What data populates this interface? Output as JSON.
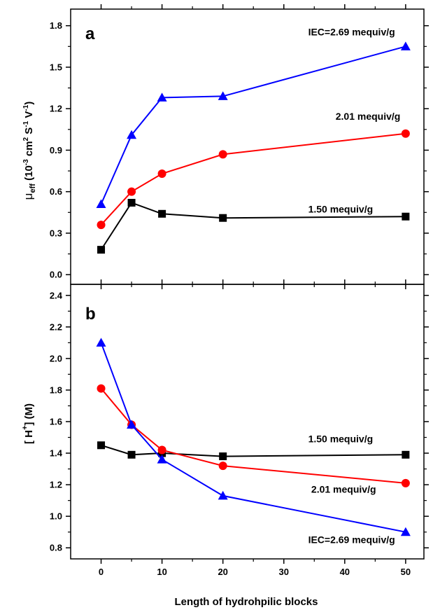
{
  "colors": {
    "black": "#000000",
    "red": "#ff0000",
    "blue": "#0000ff"
  },
  "axes": {
    "xlabel": "Length of hydrohpilic blocks",
    "xlim": [
      -5,
      53
    ],
    "xticks": [
      0,
      10,
      20,
      30,
      40,
      50
    ]
  },
  "chart_data": [
    {
      "type": "line",
      "panel": "a",
      "ylabel_parts": {
        "mu": "μ",
        "mu_sub": "eff",
        "open": " (10",
        "exp1": "-3",
        "cm": " cm",
        "exp2": "2",
        "s": " S",
        "exp3": "-1",
        "v": " V",
        "exp4": "-1",
        "close": ")"
      },
      "ylim": [
        -0.07,
        1.92
      ],
      "yticks": [
        "0.0",
        "0.3",
        "0.6",
        "0.9",
        "1.2",
        "1.5",
        "1.8"
      ],
      "x": [
        0,
        5,
        10,
        20,
        50
      ],
      "series": [
        {
          "name": "1.50 mequiv/g",
          "color": "#000000",
          "marker": "square",
          "values": [
            0.18,
            0.52,
            0.44,
            0.41,
            0.42
          ],
          "label_x": 34,
          "label_y": 0.45
        },
        {
          "name": "2.01 mequiv/g",
          "color": "#ff0000",
          "marker": "circle",
          "values": [
            0.36,
            0.6,
            0.73,
            0.87,
            1.02
          ],
          "label_x": 38.5,
          "label_y": 1.12
        },
        {
          "name": "IEC=2.69 mequiv/g",
          "color": "#0000ff",
          "marker": "triangle",
          "values": [
            0.51,
            1.01,
            1.28,
            1.29,
            1.65
          ],
          "label_x": 34,
          "label_y": 1.73
        }
      ]
    },
    {
      "type": "line",
      "panel": "b",
      "ylabel_parts": {
        "open": "[ H",
        "sup": "+",
        "close": "]  (M)"
      },
      "ylim": [
        0.73,
        2.47
      ],
      "yticks": [
        "0.8",
        "1.0",
        "1.2",
        "1.4",
        "1.6",
        "1.8",
        "2.0",
        "2.2",
        "2.4"
      ],
      "x": [
        0,
        5,
        10,
        20,
        50
      ],
      "series": [
        {
          "name": "1.50 mequiv/g",
          "color": "#000000",
          "marker": "square",
          "values": [
            1.45,
            1.39,
            1.4,
            1.38,
            1.39
          ],
          "label_x": 34,
          "label_y": 1.47
        },
        {
          "name": "2.01 mequiv/g",
          "color": "#ff0000",
          "marker": "circle",
          "values": [
            1.81,
            1.58,
            1.42,
            1.32,
            1.21
          ],
          "label_x": 34.5,
          "label_y": 1.15
        },
        {
          "name": "IEC=2.69 mequiv/g",
          "color": "#0000ff",
          "marker": "triangle",
          "values": [
            2.1,
            1.58,
            1.36,
            1.13,
            0.9
          ],
          "label_x": 34,
          "label_y": 0.83
        }
      ]
    }
  ]
}
